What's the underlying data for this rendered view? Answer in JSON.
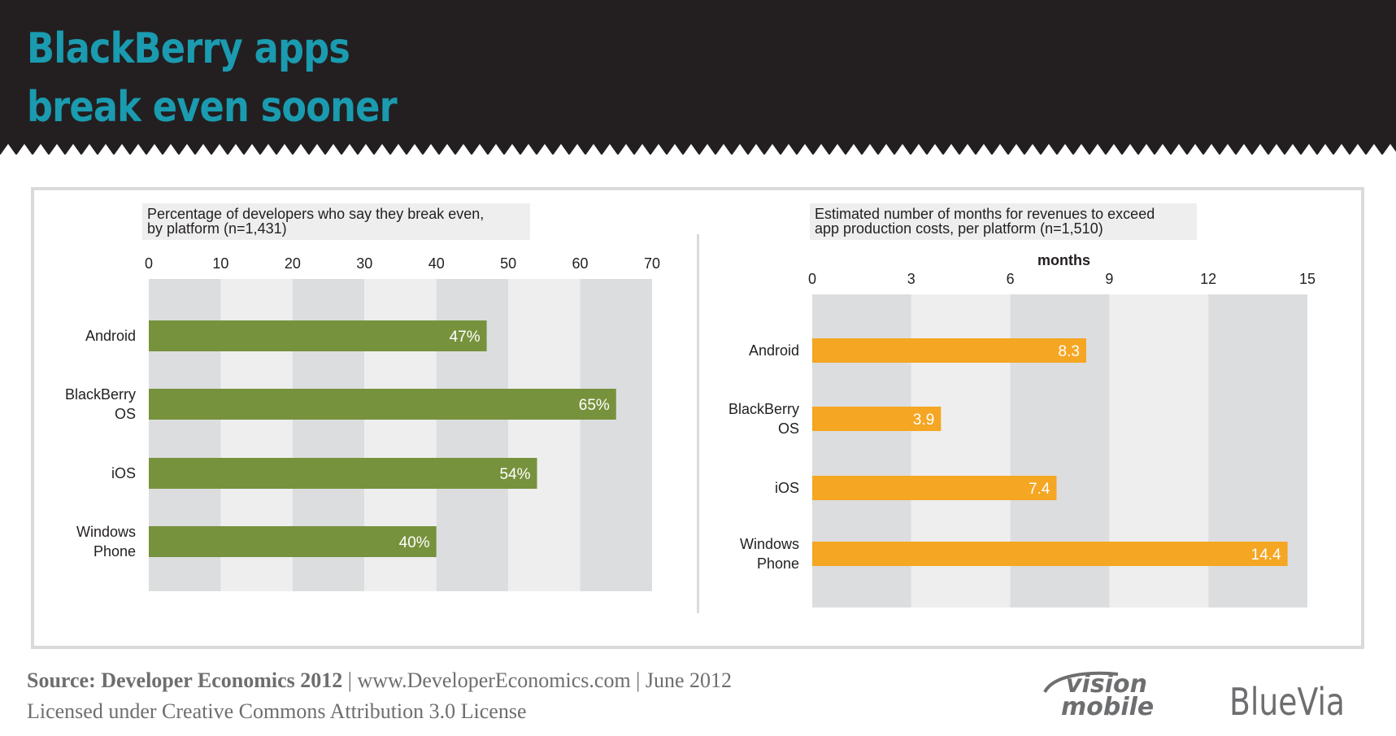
{
  "header": {
    "title_line1": "BlackBerry apps",
    "title_line2": "break even sooner",
    "title_color": "#1a9bb0",
    "background": "#231f20"
  },
  "chart_data": [
    {
      "type": "bar",
      "orientation": "horizontal",
      "title_line1": "Percentage of developers who say they break even,",
      "title_line2": "by platform (n=1,431)",
      "categories": [
        [
          "Android"
        ],
        [
          "BlackBerry",
          "OS"
        ],
        [
          "iOS"
        ],
        [
          "Windows",
          "Phone"
        ]
      ],
      "values": [
        47,
        65,
        54,
        40
      ],
      "value_labels": [
        "47%",
        "65%",
        "54%",
        "40%"
      ],
      "xlim": [
        0,
        70
      ],
      "xticks": [
        "0",
        "10",
        "20",
        "30",
        "40",
        "50",
        "60",
        "70"
      ],
      "xlabel": "",
      "bar_color": "#77923d"
    },
    {
      "type": "bar",
      "orientation": "horizontal",
      "title_line1": "Estimated number of months for revenues to exceed",
      "title_line2": "app production costs, per platform (n=1,510)",
      "categories": [
        [
          "Android"
        ],
        [
          "BlackBerry",
          "OS"
        ],
        [
          "iOS"
        ],
        [
          "Windows",
          "Phone"
        ]
      ],
      "values": [
        8.3,
        3.9,
        7.4,
        14.4
      ],
      "value_labels": [
        "8.3",
        "3.9",
        "7.4",
        "14.4"
      ],
      "xlim": [
        0,
        15
      ],
      "xticks": [
        "0",
        "3",
        "6",
        "9",
        "12",
        "15"
      ],
      "xlabel": "months",
      "bar_color": "#f5a623"
    }
  ],
  "footer": {
    "source_bold": "Source: Developer Economics 2012",
    "source_rest": " | www.DeveloperEconomics.com | June 2012",
    "license": "Licensed under Creative Commons Attribution 3.0 License",
    "logo_vision_line1": "vision",
    "logo_vision_line2": "mobile",
    "logo_bluevia": "BlueVia"
  }
}
